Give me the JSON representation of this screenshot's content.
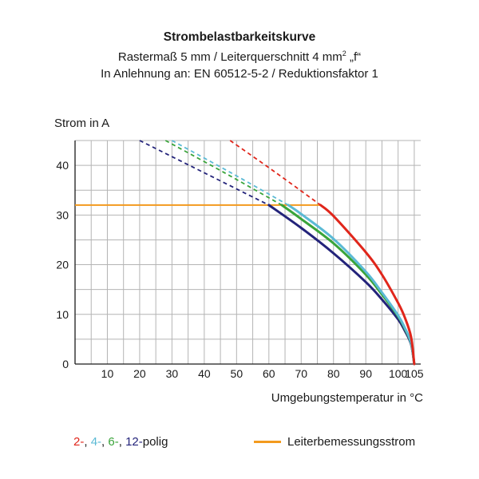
{
  "colors": {
    "c2": "#e0261b",
    "c4": "#5bbad5",
    "c6": "#3aa43a",
    "c12": "#23237a",
    "rated": "#f39a1e",
    "grid": "#b4b4b4",
    "axis": "#1a1a1a"
  },
  "chart_data": {
    "type": "line",
    "title": "Strombelastbarkeitskurve",
    "subtitle_pre": "Rastermaß 5 mm / Leiterquerschnitt 4 mm",
    "subtitle_sup": "2",
    "subtitle_post": " „f“",
    "subtitle2": "In Anlehnung an: EN 60512-5-2 / Reduktionsfaktor 1",
    "ylabel": "Strom in A",
    "xlabel": "Umgebungstemperatur in °C",
    "xlim": [
      0,
      107
    ],
    "ylim": [
      0,
      45
    ],
    "xticks": [
      10,
      20,
      30,
      40,
      50,
      60,
      70,
      80,
      90,
      100,
      105
    ],
    "yticks": [
      0,
      10,
      20,
      30,
      40
    ],
    "grid": true,
    "series": [
      {
        "key": "c12",
        "solid": [
          [
            60,
            32
          ],
          [
            70,
            27.4
          ],
          [
            80,
            22.3
          ],
          [
            90,
            16.5
          ],
          [
            95,
            13.0
          ],
          [
            100,
            9.0
          ],
          [
            102,
            6.8
          ],
          [
            104,
            4.0
          ],
          [
            105,
            0
          ]
        ],
        "dashed": [
          [
            20,
            45
          ],
          [
            40,
            38.5
          ],
          [
            60,
            32
          ]
        ]
      },
      {
        "key": "c6",
        "solid": [
          [
            64,
            32
          ],
          [
            70,
            29.2
          ],
          [
            80,
            24.3
          ],
          [
            90,
            18.0
          ],
          [
            95,
            14.0
          ],
          [
            100,
            9.6
          ],
          [
            102,
            7.2
          ],
          [
            104,
            4.2
          ],
          [
            105,
            0
          ]
        ],
        "dashed": [
          [
            28,
            45
          ],
          [
            46,
            38.6
          ],
          [
            64,
            32
          ]
        ]
      },
      {
        "key": "c4",
        "solid": [
          [
            66,
            32
          ],
          [
            70,
            30.2
          ],
          [
            80,
            25.2
          ],
          [
            90,
            18.6
          ],
          [
            95,
            14.4
          ],
          [
            100,
            9.8
          ],
          [
            102,
            7.4
          ],
          [
            104,
            4.3
          ],
          [
            105,
            0
          ]
        ],
        "dashed": [
          [
            30,
            45
          ],
          [
            48,
            38.6
          ],
          [
            66,
            32
          ]
        ]
      },
      {
        "key": "c2",
        "solid": [
          [
            76,
            32
          ],
          [
            80,
            29.8
          ],
          [
            90,
            22.5
          ],
          [
            95,
            18.0
          ],
          [
            100,
            12.3
          ],
          [
            102,
            9.5
          ],
          [
            104,
            5.5
          ],
          [
            105,
            0
          ]
        ],
        "dashed": [
          [
            48,
            45
          ],
          [
            62,
            38.6
          ],
          [
            76,
            32
          ]
        ]
      }
    ],
    "rated_current": 32,
    "rated_series": [
      [
        0,
        32
      ],
      [
        76,
        32
      ]
    ]
  },
  "legend": {
    "left_parts": [
      {
        "text": "2-",
        "key": "c2"
      },
      {
        "text": ", ",
        "key": "axis"
      },
      {
        "text": "4-",
        "key": "c4"
      },
      {
        "text": ", ",
        "key": "axis"
      },
      {
        "text": "6-",
        "key": "c6"
      },
      {
        "text": ", ",
        "key": "axis"
      },
      {
        "text": "12-",
        "key": "c12"
      },
      {
        "text": "polig",
        "key": "axis"
      }
    ],
    "right_label": "Leiterbemessungsstrom"
  }
}
